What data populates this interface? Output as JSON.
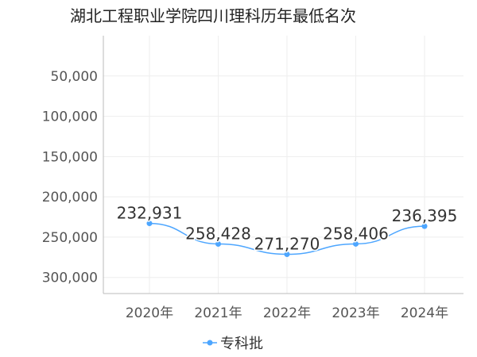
{
  "chart_data": {
    "type": "line",
    "title": "湖北工程职业学院四川理科历年最低名次",
    "categories": [
      "2020年",
      "2021年",
      "2022年",
      "2023年",
      "2024年"
    ],
    "series": [
      {
        "name": "专科批",
        "values": [
          232931,
          258428,
          271270,
          258406,
          236395
        ],
        "labels": [
          "232,931",
          "258,428",
          "271,270",
          "258,406",
          "236,395"
        ],
        "color": "#4da6ff"
      }
    ],
    "y_axis": {
      "inverted": true,
      "ylim": [
        0,
        320000
      ],
      "ticks": [
        50000,
        100000,
        150000,
        200000,
        250000,
        300000
      ],
      "tick_labels": [
        "50,000",
        "100,000",
        "150,000",
        "200,000",
        "250,000",
        "300,000"
      ]
    },
    "grid": true,
    "legend_position": "bottom"
  }
}
